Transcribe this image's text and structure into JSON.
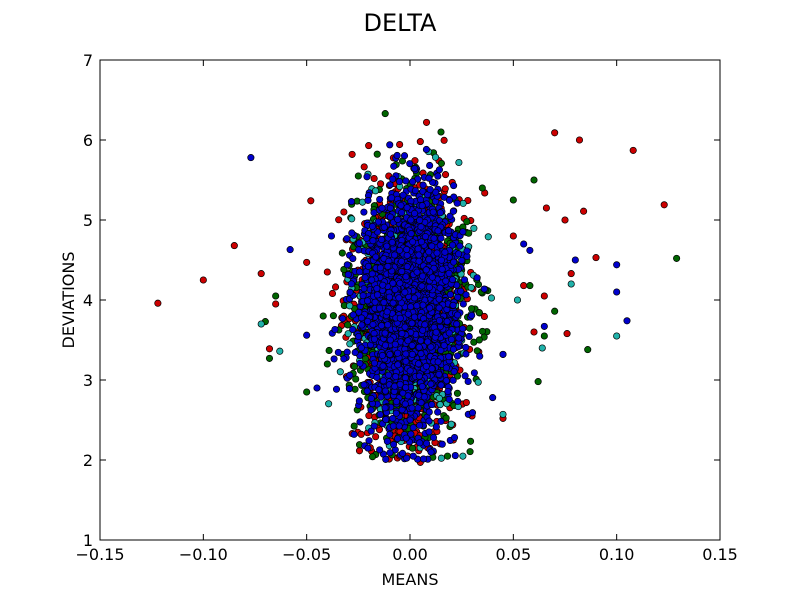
{
  "chart_data": {
    "type": "scatter",
    "title": "DELTA",
    "xlabel": "MEANS",
    "ylabel": "DEVIATIONS",
    "xlim": [
      -0.15,
      0.15
    ],
    "ylim": [
      1,
      7
    ],
    "xticks": [
      -0.15,
      -0.1,
      -0.05,
      0.0,
      0.05,
      0.1,
      0.15
    ],
    "xtick_labels": [
      "−0.15",
      "−0.10",
      "−0.05",
      "0.00",
      "0.05",
      "0.10",
      "0.15"
    ],
    "yticks": [
      1,
      2,
      3,
      4,
      5,
      6,
      7
    ],
    "ytick_labels": [
      "1",
      "2",
      "3",
      "4",
      "5",
      "6",
      "7"
    ],
    "grid": false,
    "legend": "none",
    "marker": "circle",
    "series": [
      {
        "color": "#cc0000",
        "cluster": {
          "x_mean": 0.0,
          "x_std": 0.012,
          "y_mean": 3.9,
          "y_std": 0.75,
          "count": 1200
        },
        "points": [
          {
            "x": -0.122,
            "y": 3.96
          },
          {
            "x": -0.1,
            "y": 4.25
          },
          {
            "x": -0.085,
            "y": 4.68
          },
          {
            "x": -0.072,
            "y": 4.33
          },
          {
            "x": -0.068,
            "y": 3.39
          },
          {
            "x": -0.065,
            "y": 3.95
          },
          {
            "x": -0.05,
            "y": 4.47
          },
          {
            "x": -0.048,
            "y": 5.24
          },
          {
            "x": -0.04,
            "y": 4.35
          },
          {
            "x": -0.032,
            "y": 5.1
          },
          {
            "x": -0.028,
            "y": 5.82
          },
          {
            "x": -0.02,
            "y": 5.93
          },
          {
            "x": 0.005,
            "y": 5.98
          },
          {
            "x": 0.008,
            "y": 6.22
          },
          {
            "x": 0.005,
            "y": 1.97
          },
          {
            "x": -0.005,
            "y": 2.05
          },
          {
            "x": 0.03,
            "y": 2.55
          },
          {
            "x": 0.045,
            "y": 2.52
          },
          {
            "x": 0.045,
            "y": 3.32
          },
          {
            "x": 0.05,
            "y": 4.8
          },
          {
            "x": 0.055,
            "y": 4.18
          },
          {
            "x": 0.06,
            "y": 3.6
          },
          {
            "x": 0.065,
            "y": 4.05
          },
          {
            "x": 0.066,
            "y": 5.15
          },
          {
            "x": 0.07,
            "y": 6.09
          },
          {
            "x": 0.075,
            "y": 5.0
          },
          {
            "x": 0.076,
            "y": 3.58
          },
          {
            "x": 0.078,
            "y": 4.33
          },
          {
            "x": 0.082,
            "y": 6.0
          },
          {
            "x": 0.084,
            "y": 5.11
          },
          {
            "x": 0.09,
            "y": 4.53
          },
          {
            "x": 0.108,
            "y": 5.87
          },
          {
            "x": 0.123,
            "y": 5.19
          }
        ]
      },
      {
        "color": "#006400",
        "cluster": {
          "x_mean": 0.0,
          "x_std": 0.014,
          "y_mean": 3.9,
          "y_std": 0.7,
          "count": 900
        },
        "points": [
          {
            "x": -0.07,
            "y": 3.73
          },
          {
            "x": -0.068,
            "y": 3.27
          },
          {
            "x": -0.065,
            "y": 4.05
          },
          {
            "x": -0.05,
            "y": 2.85
          },
          {
            "x": -0.042,
            "y": 3.8
          },
          {
            "x": -0.04,
            "y": 3.2
          },
          {
            "x": -0.025,
            "y": 5.55
          },
          {
            "x": -0.012,
            "y": 6.33
          },
          {
            "x": 0.015,
            "y": 6.1
          },
          {
            "x": 0.035,
            "y": 5.4
          },
          {
            "x": 0.05,
            "y": 5.25
          },
          {
            "x": 0.058,
            "y": 4.18
          },
          {
            "x": 0.06,
            "y": 5.5
          },
          {
            "x": 0.062,
            "y": 2.98
          },
          {
            "x": 0.065,
            "y": 3.55
          },
          {
            "x": 0.07,
            "y": 3.86
          },
          {
            "x": 0.086,
            "y": 3.38
          },
          {
            "x": 0.129,
            "y": 4.52
          }
        ]
      },
      {
        "color": "#20b2aa",
        "cluster": {
          "x_mean": 0.0,
          "x_std": 0.013,
          "y_mean": 3.9,
          "y_std": 0.7,
          "count": 400
        },
        "points": [
          {
            "x": -0.072,
            "y": 3.7
          },
          {
            "x": -0.063,
            "y": 3.36
          },
          {
            "x": -0.02,
            "y": 2.4
          },
          {
            "x": -0.01,
            "y": 2.18
          },
          {
            "x": 0.045,
            "y": 2.57
          },
          {
            "x": 0.052,
            "y": 4.0
          },
          {
            "x": 0.064,
            "y": 3.4
          },
          {
            "x": 0.078,
            "y": 4.2
          },
          {
            "x": 0.1,
            "y": 3.55
          }
        ]
      },
      {
        "color": "#0000cc",
        "cluster": {
          "x_mean": 0.0,
          "x_std": 0.011,
          "y_mean": 3.9,
          "y_std": 0.68,
          "count": 2600
        },
        "points": [
          {
            "x": -0.077,
            "y": 5.78
          },
          {
            "x": -0.058,
            "y": 4.63
          },
          {
            "x": -0.05,
            "y": 3.56
          },
          {
            "x": -0.045,
            "y": 2.9
          },
          {
            "x": -0.038,
            "y": 4.8
          },
          {
            "x": 0.04,
            "y": 2.78
          },
          {
            "x": 0.045,
            "y": 3.32
          },
          {
            "x": 0.055,
            "y": 4.7
          },
          {
            "x": 0.058,
            "y": 4.62
          },
          {
            "x": 0.065,
            "y": 3.67
          },
          {
            "x": 0.08,
            "y": 4.5
          },
          {
            "x": 0.1,
            "y": 4.1
          },
          {
            "x": 0.1,
            "y": 4.44
          },
          {
            "x": 0.105,
            "y": 3.74
          }
        ]
      }
    ]
  }
}
